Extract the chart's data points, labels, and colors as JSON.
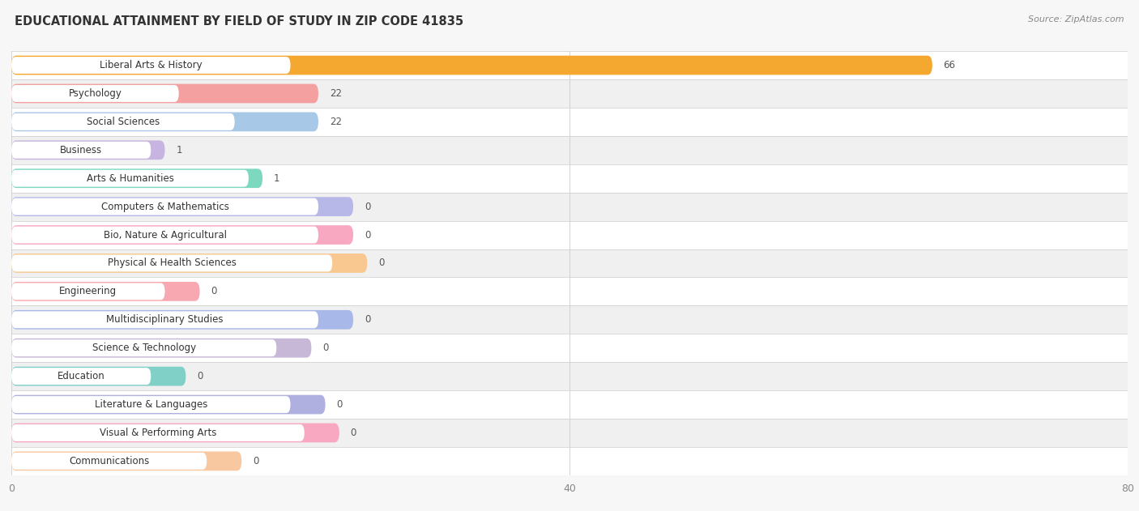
{
  "title": "EDUCATIONAL ATTAINMENT BY FIELD OF STUDY IN ZIP CODE 41835",
  "source": "Source: ZipAtlas.com",
  "categories": [
    "Liberal Arts & History",
    "Psychology",
    "Social Sciences",
    "Business",
    "Arts & Humanities",
    "Computers & Mathematics",
    "Bio, Nature & Agricultural",
    "Physical & Health Sciences",
    "Engineering",
    "Multidisciplinary Studies",
    "Science & Technology",
    "Education",
    "Literature & Languages",
    "Visual & Performing Arts",
    "Communications"
  ],
  "values": [
    66,
    22,
    22,
    1,
    1,
    0,
    0,
    0,
    0,
    0,
    0,
    0,
    0,
    0,
    0
  ],
  "bar_colors": [
    "#F5A830",
    "#F4A0A0",
    "#A8C8E8",
    "#C8B4E0",
    "#7DD8C0",
    "#B8B8E8",
    "#F8A8C0",
    "#F8C890",
    "#F8A8B0",
    "#A8B8E8",
    "#C8B8D8",
    "#80D0C8",
    "#B0B0E0",
    "#F8A8C0",
    "#F8C8A0"
  ],
  "xlim": [
    0,
    80
  ],
  "xticks": [
    0,
    40,
    80
  ],
  "background_color": "#f7f7f7",
  "row_colors": [
    "#ffffff",
    "#f0f0f0"
  ],
  "grid_color": "#cccccc",
  "title_fontsize": 10.5,
  "source_fontsize": 8,
  "label_fontsize": 8.5,
  "value_fontsize": 8.5,
  "zero_stub_value": 22
}
